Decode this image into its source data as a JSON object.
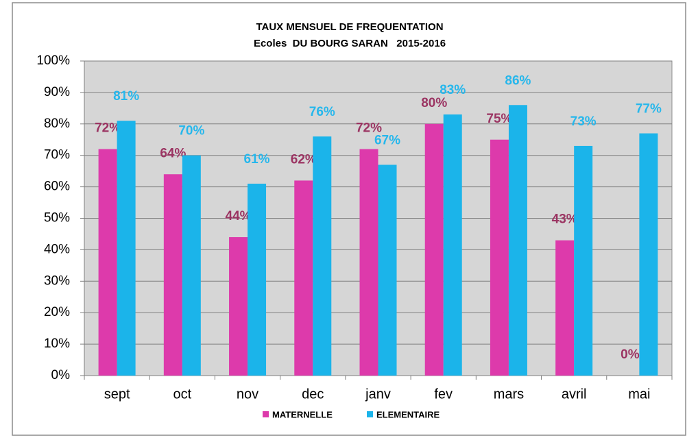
{
  "chart_data": {
    "type": "bar",
    "title": "TAUX MENSUEL DE FREQUENTATION",
    "subtitle": "Ecoles  DU BOURG SARAN   2015-2016",
    "categories": [
      "sept",
      "oct",
      "nov",
      "dec",
      "janv",
      "fev",
      "mars",
      "avril",
      "mai"
    ],
    "series": [
      {
        "name": "MATERNELLE",
        "color": "#dd3aab",
        "label_color": "#9b3462",
        "values": [
          72,
          64,
          44,
          62,
          72,
          80,
          75,
          43,
          0
        ],
        "value_labels": [
          "72%",
          "64%",
          "44%",
          "62%",
          "72%",
          "80%",
          "75%",
          "43%",
          "0%"
        ]
      },
      {
        "name": "ELEMENTAIRE",
        "color": "#1bb4ea",
        "label_color": "#26b7ec",
        "values": [
          81,
          70,
          61,
          76,
          67,
          83,
          86,
          73,
          77
        ],
        "value_labels": [
          "81%",
          "70%",
          "61%",
          "76%",
          "67%",
          "83%",
          "86%",
          "73%",
          "77%"
        ]
      }
    ],
    "ylim": [
      0,
      100
    ],
    "yticks": [
      {
        "value": 0,
        "label": "0%"
      },
      {
        "value": 10,
        "label": "10%"
      },
      {
        "value": 20,
        "label": "20%"
      },
      {
        "value": 30,
        "label": "30%"
      },
      {
        "value": 40,
        "label": "40%"
      },
      {
        "value": 50,
        "label": "50%"
      },
      {
        "value": 60,
        "label": "60%"
      },
      {
        "value": 70,
        "label": "70%"
      },
      {
        "value": 80,
        "label": "80%"
      },
      {
        "value": 90,
        "label": "90%"
      },
      {
        "value": 100,
        "label": "100%"
      }
    ],
    "grid": true
  }
}
